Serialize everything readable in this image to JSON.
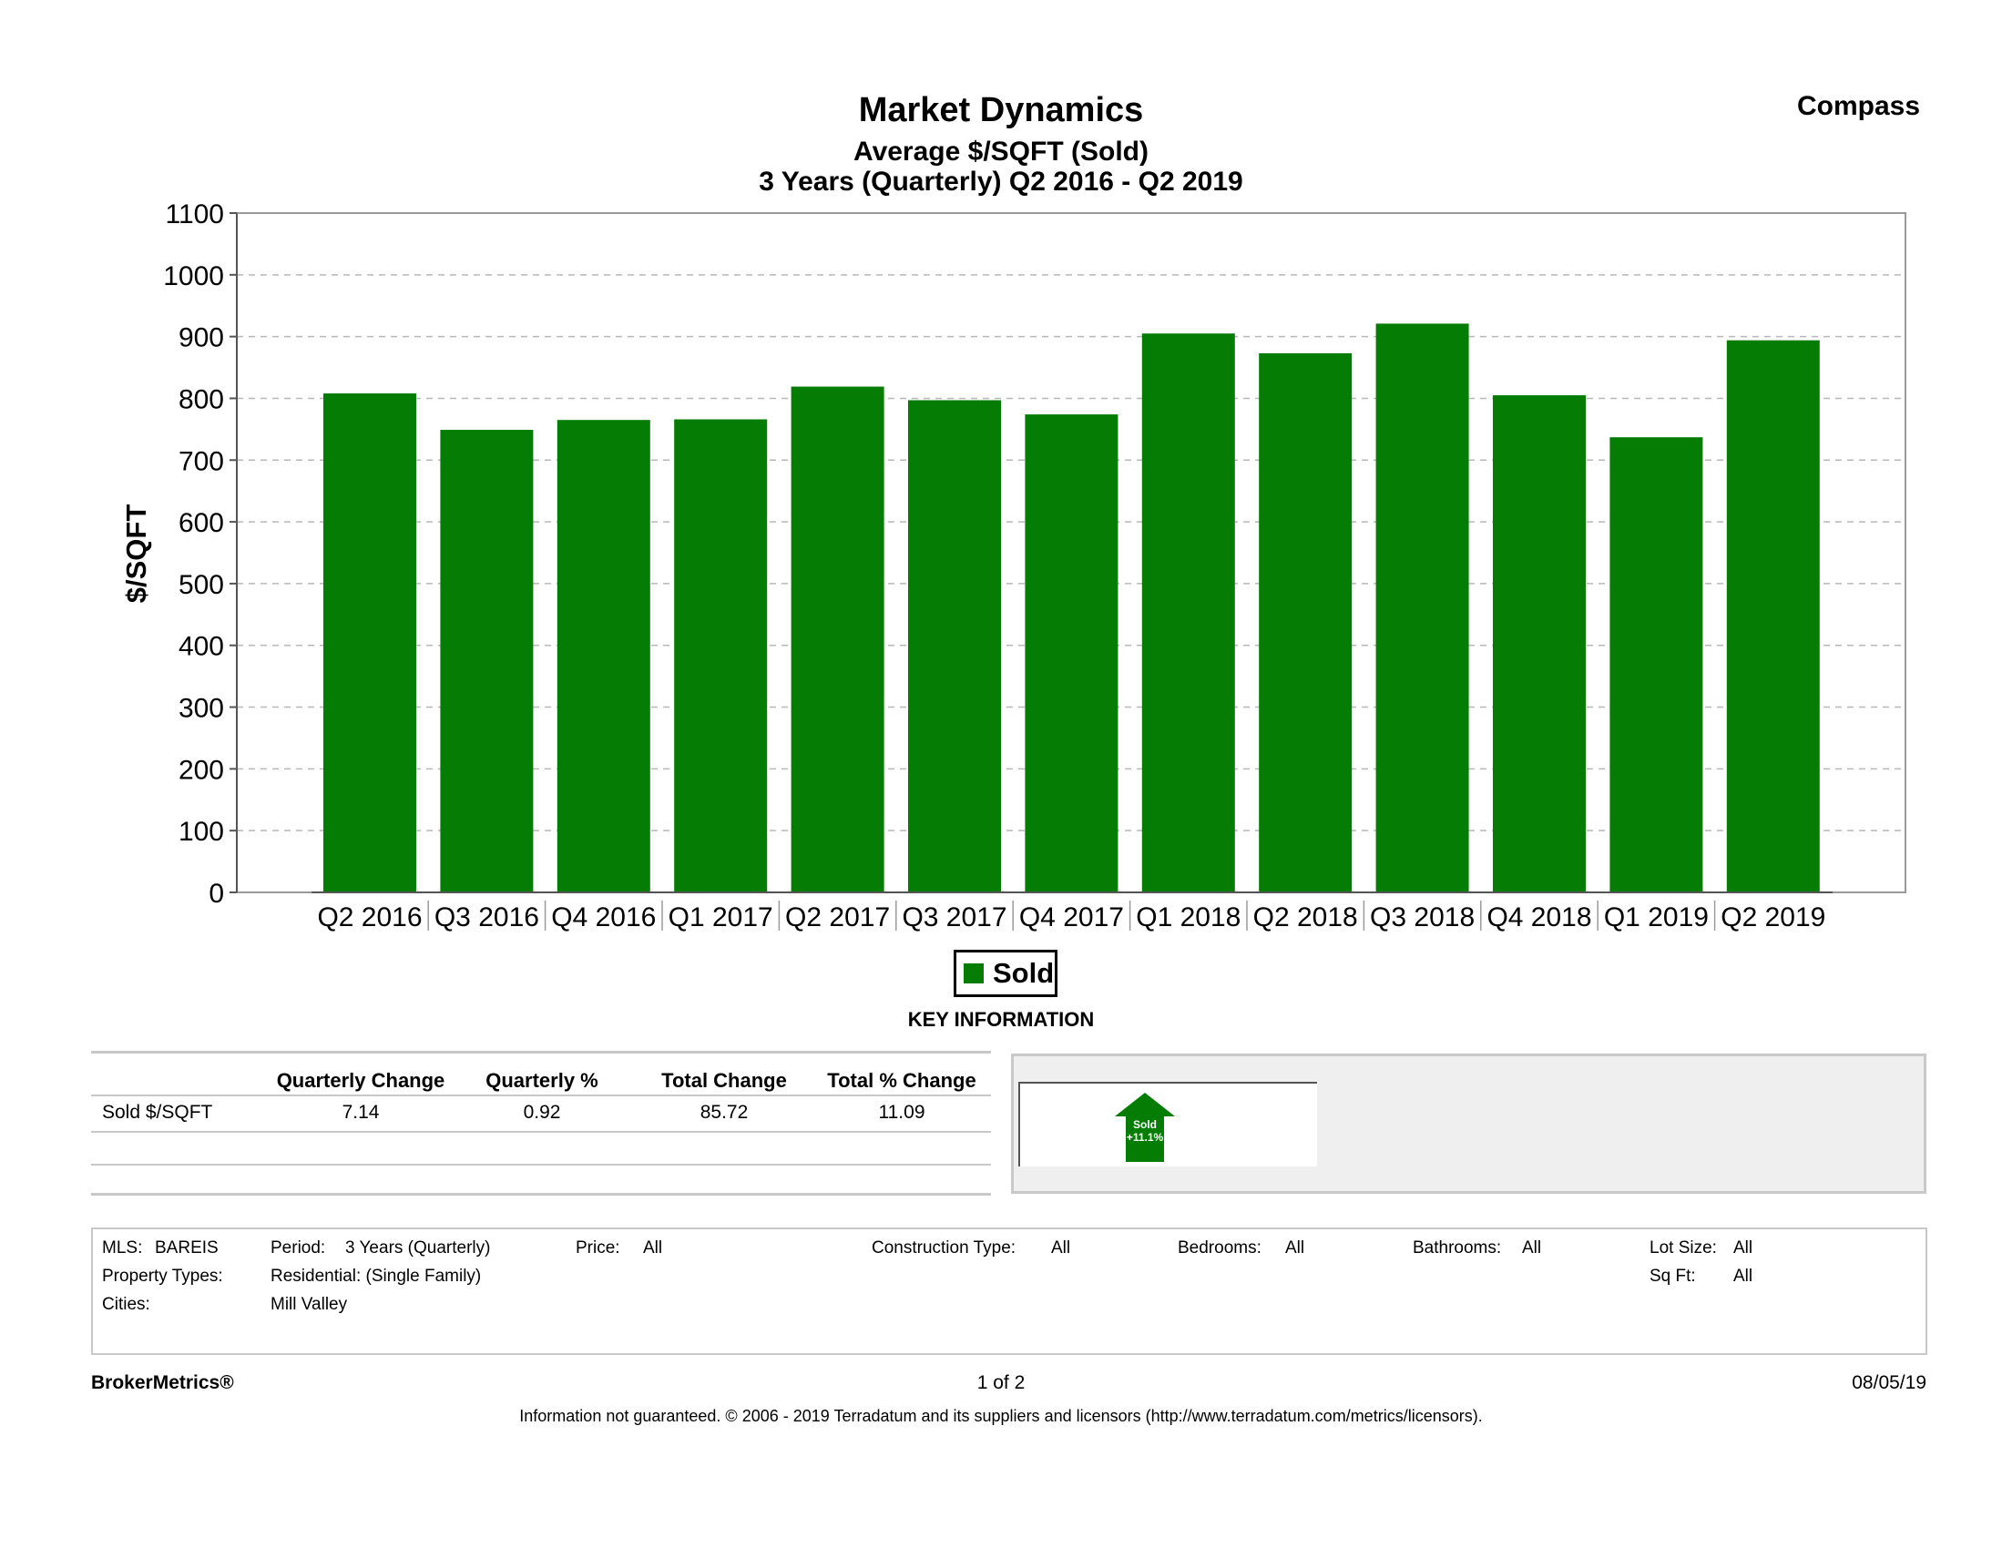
{
  "header": {
    "title": "Market Dynamics",
    "subtitle": "Average $/SQFT (Sold)",
    "period": "3 Years (Quarterly) Q2 2016 - Q2 2019",
    "brand": "Compass"
  },
  "chart_data": {
    "type": "bar",
    "title": "Market Dynamics",
    "subtitle": "Average $/SQFT (Sold)",
    "xlabel": "",
    "ylabel": "$/SQFT",
    "ylim": [
      0,
      1100
    ],
    "yticks": [
      0,
      100,
      200,
      300,
      400,
      500,
      600,
      700,
      800,
      900,
      1000,
      1100
    ],
    "grid": true,
    "categories": [
      "Q2 2016",
      "Q3 2016",
      "Q4 2016",
      "Q1 2017",
      "Q2 2017",
      "Q3 2017",
      "Q4 2017",
      "Q1 2018",
      "Q2 2018",
      "Q3 2018",
      "Q4 2018",
      "Q1 2019",
      "Q2 2019"
    ],
    "series": [
      {
        "name": "Sold",
        "color": "#057d05",
        "values": [
          808,
          749,
          765,
          766,
          819,
          797,
          774,
          905,
          873,
          921,
          805,
          737,
          894
        ]
      }
    ],
    "legend": "bottom-center"
  },
  "legend": {
    "label": "Sold"
  },
  "key_info": {
    "heading": "KEY INFORMATION",
    "columns": [
      "Quarterly Change",
      "Quarterly %",
      "Total Change",
      "Total % Change"
    ],
    "rows": [
      {
        "label": "Sold $/SQFT",
        "values": [
          "7.14",
          "0.92",
          "85.72",
          "11.09"
        ]
      }
    ],
    "badge": {
      "label": "Sold",
      "value": "+11.1%",
      "direction": "up",
      "color": "#057d05"
    }
  },
  "criteria": {
    "mls_label": "MLS:",
    "mls_value": "BAREIS",
    "period_label": "Period:",
    "period_value": "3 Years (Quarterly)",
    "price_label": "Price:",
    "price_value": "All",
    "construction_label": "Construction Type:",
    "construction_value": "All",
    "bedrooms_label": "Bedrooms:",
    "bedrooms_value": "All",
    "bathrooms_label": "Bathrooms:",
    "bathrooms_value": "All",
    "lotsize_label": "Lot Size:",
    "lotsize_value": "All",
    "proptype_label": "Property Types:",
    "proptype_value": "Residential: (Single Family)",
    "sqft_label": "Sq Ft:",
    "sqft_value": "All",
    "cities_label": "Cities:",
    "cities_value": "Mill Valley"
  },
  "footer": {
    "product": "BrokerMetrics®",
    "page": "1 of 2",
    "date": "08/05/19",
    "disclaimer": "Information not guaranteed.  © 2006 - 2019 Terradatum and its suppliers and licensors (http://www.terradatum.com/metrics/licensors)."
  }
}
